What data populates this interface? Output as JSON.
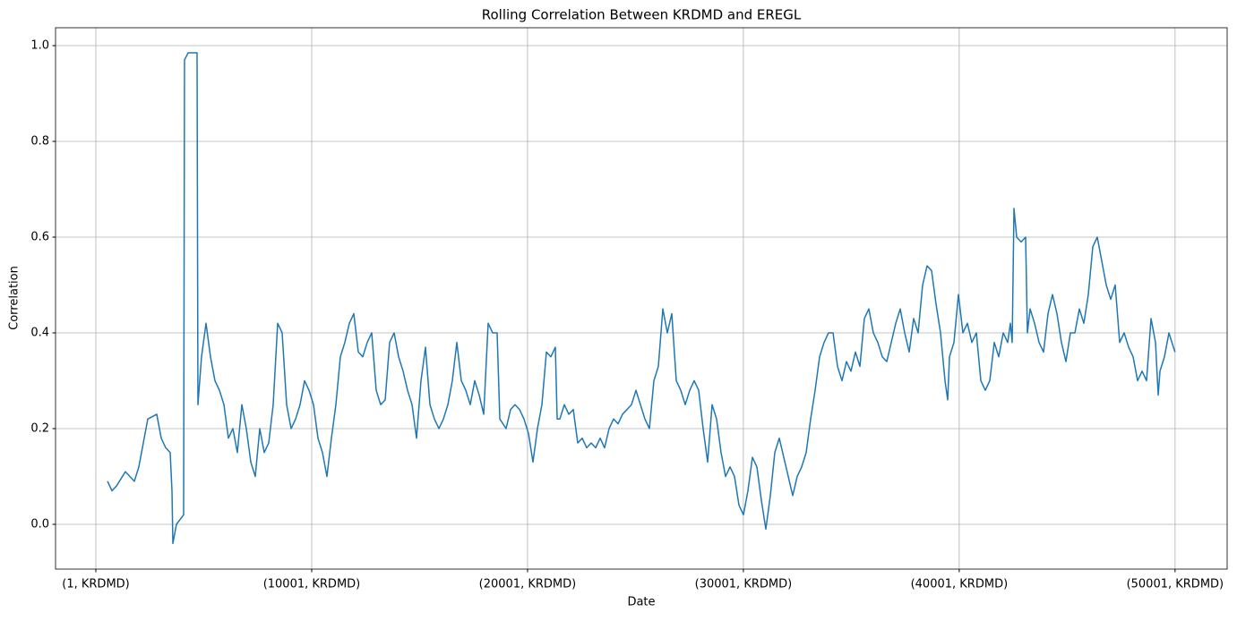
{
  "chart_data": {
    "type": "line",
    "title": "Rolling Correlation Between KRDMD and EREGL",
    "x_label": "Date",
    "y_label": "Correlation",
    "xlim": [
      -1867,
      52414
    ],
    "ylim": [
      -0.0935,
      1.0374
    ],
    "xticks": [
      {
        "value": 1,
        "label": "(1, KRDMD)"
      },
      {
        "value": 10001,
        "label": "(10001, KRDMD)"
      },
      {
        "value": 20001,
        "label": "(20001, KRDMD)"
      },
      {
        "value": 30001,
        "label": "(30001, KRDMD)"
      },
      {
        "value": 40001,
        "label": "(40001, KRDMD)"
      },
      {
        "value": 50001,
        "label": "(50001, KRDMD)"
      }
    ],
    "yticks": [
      {
        "value": 0,
        "label": "0.0"
      },
      0.2,
      0.4,
      0.6,
      0.8,
      {
        "value": 1,
        "label": "1.0"
      }
    ],
    "grid": true,
    "series": [
      {
        "color": "#1f77b4",
        "x": [
          540,
          747,
          955,
          1370,
          1785,
          1992,
          2200,
          2407,
          2822,
          3030,
          3237,
          3445,
          3528,
          3569,
          3735,
          4067,
          4108,
          4275,
          4690,
          4731,
          4897,
          5105,
          5312,
          5520,
          5727,
          5935,
          6142,
          6350,
          6557,
          6765,
          6972,
          7180,
          7387,
          7595,
          7802,
          8010,
          8217,
          8425,
          8632,
          8840,
          9047,
          9255,
          9462,
          9670,
          9877,
          10085,
          10292,
          10500,
          10707,
          10915,
          11122,
          11330,
          11537,
          11745,
          11952,
          12160,
          12367,
          12575,
          12782,
          12990,
          13197,
          13405,
          13612,
          13820,
          14027,
          14235,
          14442,
          14650,
          14857,
          15065,
          15272,
          15480,
          15687,
          15895,
          16102,
          16310,
          16517,
          16725,
          16932,
          17140,
          17347,
          17555,
          17762,
          17970,
          18177,
          18385,
          18592,
          18717,
          19007,
          19215,
          19422,
          19630,
          19837,
          20045,
          20252,
          20460,
          20667,
          20875,
          21082,
          21290,
          21373,
          21497,
          21705,
          21912,
          22120,
          22327,
          22535,
          22742,
          22950,
          23157,
          23365,
          23572,
          23780,
          23987,
          24195,
          24402,
          24610,
          24817,
          25025,
          25232,
          25440,
          25647,
          25855,
          26062,
          26270,
          26477,
          26685,
          26892,
          27100,
          27307,
          27515,
          27722,
          27930,
          28137,
          28345,
          28552,
          28760,
          28967,
          29175,
          29382,
          29590,
          29797,
          30005,
          30212,
          30420,
          30627,
          30835,
          31042,
          31250,
          31457,
          31665,
          31872,
          32080,
          32287,
          32495,
          32702,
          32910,
          33117,
          33325,
          33532,
          33740,
          33947,
          34155,
          34362,
          34570,
          34777,
          34985,
          35192,
          35400,
          35607,
          35815,
          36022,
          36230,
          36437,
          36645,
          36852,
          37060,
          37267,
          37475,
          37682,
          37890,
          38097,
          38305,
          38512,
          38720,
          38927,
          39135,
          39342,
          39467,
          39550,
          39757,
          39965,
          40172,
          40380,
          40587,
          40795,
          41002,
          41210,
          41417,
          41625,
          41832,
          42040,
          42247,
          42372,
          42455,
          42538,
          42662,
          42870,
          43077,
          43160,
          43285,
          43492,
          43700,
          43907,
          44115,
          44322,
          44530,
          44737,
          44945,
          45152,
          45360,
          45567,
          45775,
          45982,
          46190,
          46397,
          46605,
          46812,
          47020,
          47227,
          47435,
          47642,
          47850,
          48057,
          48265,
          48472,
          48680,
          48887,
          49095,
          49220,
          49302,
          49510,
          49717,
          49925,
          50001
        ],
        "values": [
          0.09,
          0.07,
          0.08,
          0.11,
          0.09,
          0.12,
          0.17,
          0.22,
          0.23,
          0.18,
          0.16,
          0.15,
          0.07,
          -0.04,
          0.0,
          0.02,
          0.97,
          0.985,
          0.985,
          0.25,
          0.35,
          0.42,
          0.35,
          0.3,
          0.28,
          0.25,
          0.18,
          0.2,
          0.15,
          0.25,
          0.2,
          0.13,
          0.1,
          0.2,
          0.15,
          0.17,
          0.25,
          0.42,
          0.4,
          0.25,
          0.2,
          0.22,
          0.25,
          0.3,
          0.28,
          0.25,
          0.18,
          0.15,
          0.1,
          0.18,
          0.25,
          0.35,
          0.38,
          0.42,
          0.44,
          0.36,
          0.35,
          0.38,
          0.4,
          0.28,
          0.25,
          0.26,
          0.38,
          0.4,
          0.35,
          0.32,
          0.28,
          0.25,
          0.18,
          0.3,
          0.37,
          0.25,
          0.22,
          0.2,
          0.22,
          0.25,
          0.3,
          0.38,
          0.3,
          0.28,
          0.25,
          0.3,
          0.27,
          0.23,
          0.42,
          0.4,
          0.4,
          0.22,
          0.2,
          0.24,
          0.25,
          0.24,
          0.22,
          0.19,
          0.13,
          0.2,
          0.25,
          0.36,
          0.35,
          0.37,
          0.22,
          0.22,
          0.25,
          0.23,
          0.24,
          0.17,
          0.18,
          0.16,
          0.17,
          0.16,
          0.18,
          0.16,
          0.2,
          0.22,
          0.21,
          0.23,
          0.24,
          0.25,
          0.28,
          0.25,
          0.22,
          0.2,
          0.3,
          0.33,
          0.45,
          0.4,
          0.44,
          0.3,
          0.28,
          0.25,
          0.28,
          0.3,
          0.28,
          0.2,
          0.13,
          0.25,
          0.22,
          0.15,
          0.1,
          0.12,
          0.1,
          0.04,
          0.02,
          0.07,
          0.14,
          0.12,
          0.05,
          -0.01,
          0.06,
          0.15,
          0.18,
          0.14,
          0.1,
          0.06,
          0.1,
          0.12,
          0.15,
          0.22,
          0.28,
          0.35,
          0.38,
          0.4,
          0.4,
          0.33,
          0.3,
          0.34,
          0.32,
          0.36,
          0.33,
          0.43,
          0.45,
          0.4,
          0.38,
          0.35,
          0.34,
          0.38,
          0.42,
          0.45,
          0.4,
          0.36,
          0.43,
          0.4,
          0.5,
          0.54,
          0.53,
          0.46,
          0.4,
          0.3,
          0.26,
          0.35,
          0.38,
          0.48,
          0.4,
          0.42,
          0.38,
          0.4,
          0.3,
          0.28,
          0.3,
          0.38,
          0.35,
          0.4,
          0.38,
          0.42,
          0.38,
          0.66,
          0.6,
          0.59,
          0.6,
          0.4,
          0.45,
          0.42,
          0.38,
          0.36,
          0.44,
          0.48,
          0.44,
          0.38,
          0.34,
          0.4,
          0.4,
          0.45,
          0.42,
          0.48,
          0.58,
          0.6,
          0.55,
          0.5,
          0.47,
          0.5,
          0.38,
          0.4,
          0.37,
          0.35,
          0.3,
          0.32,
          0.3,
          0.43,
          0.38,
          0.27,
          0.32,
          0.35,
          0.4,
          0.37,
          0.36
        ]
      }
    ]
  }
}
